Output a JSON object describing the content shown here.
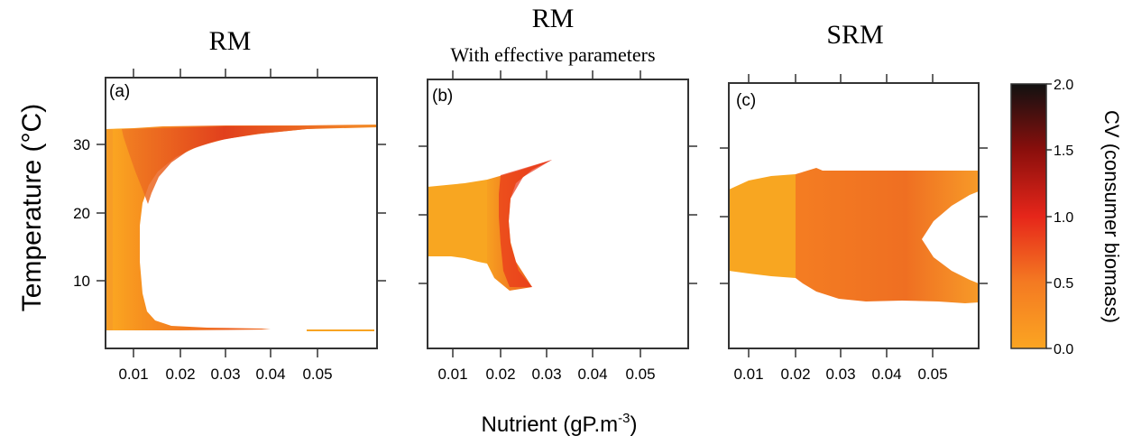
{
  "figure": {
    "ylabel": "Temperature (°C)",
    "xlabel_main": "Nutrient (gP.m",
    "xlabel_sup": "-3",
    "xlabel_close": ")"
  },
  "colors": {
    "low": "#fbaa22",
    "mid": "#f26a22",
    "high": "#e6261a",
    "max": "#111111"
  },
  "colorbar": {
    "label": "CV (consumer biomass)",
    "ticks": [
      "2.0",
      "1.5",
      "1.0",
      "0.5",
      "0.0"
    ]
  },
  "chart_data": [
    {
      "type": "heatmap",
      "title": "RM",
      "subtitle": "",
      "panel": "(a)",
      "xlim": [
        0.005,
        0.06
      ],
      "ylim": [
        0,
        40
      ],
      "xticks": [
        "0.01",
        "0.02",
        "0.03",
        "0.04",
        "0.05"
      ],
      "yticks": [
        "10",
        "20",
        "30"
      ],
      "region_T": [
        3.5,
        32.8
      ],
      "cv_range": [
        0.0,
        1.4
      ],
      "description": "region below ~32.8°C; inner boundary at nutrient ~0.013 for 5–30°C, curving out to 0.06 near 32.8°C"
    },
    {
      "type": "heatmap",
      "title": "RM",
      "subtitle": "With effective parameters",
      "panel": "(b)",
      "xlim": [
        0.005,
        0.06
      ],
      "ylim": [
        0,
        40
      ],
      "xticks": [
        "0.01",
        "0.02",
        "0.03",
        "0.04",
        "0.05"
      ],
      "yticks": [],
      "region_T": [
        7.5,
        27.5
      ],
      "cv_range": [
        0.0,
        1.0
      ],
      "description": "crescent-shaped region, nutrient up to ~0.032 at its tips"
    },
    {
      "type": "heatmap",
      "title": "SRM",
      "subtitle": "",
      "panel": "(c)",
      "xlim": [
        0.005,
        0.058
      ],
      "ylim": [
        0,
        40
      ],
      "xticks": [
        "0.01",
        "0.02",
        "0.03",
        "0.04",
        "0.05"
      ],
      "yticks": [],
      "region_T": [
        6.8,
        26.5
      ],
      "cv_range": [
        0.0,
        0.8
      ],
      "description": "broad region between ~7 and ~26.5°C with a white notch at high nutrient near 15°C"
    }
  ]
}
